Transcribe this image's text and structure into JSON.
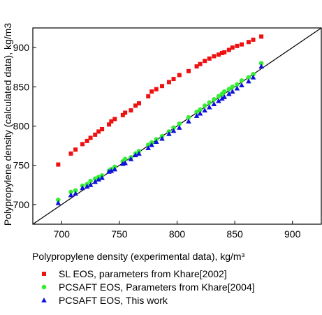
{
  "chart_data": {
    "type": "scatter",
    "xlabel": "Polypropylene density (experimental data), kg/m³",
    "ylabel": "Polypropylene density (calculated data), kg/m3",
    "xlim": [
      675,
      925
    ],
    "ylim": [
      675,
      925
    ],
    "xticks": [
      700,
      750,
      800,
      850,
      900
    ],
    "yticks": [
      700,
      750,
      800,
      850,
      900
    ],
    "grid": false,
    "legend_position": "below",
    "reference_line": {
      "from": [
        675,
        675
      ],
      "to": [
        925,
        925
      ],
      "color": "#000000"
    },
    "series": [
      {
        "name": "SL EOS, parameters from Khare[2002]",
        "marker": "square",
        "color": "#ee1111",
        "points": [
          [
            697,
            751
          ],
          [
            708,
            765
          ],
          [
            712,
            770
          ],
          [
            718,
            777
          ],
          [
            722,
            781
          ],
          [
            725,
            785
          ],
          [
            729,
            789
          ],
          [
            732,
            793
          ],
          [
            735,
            796
          ],
          [
            741,
            802
          ],
          [
            743,
            806
          ],
          [
            746,
            809
          ],
          [
            753,
            814
          ],
          [
            755,
            817
          ],
          [
            760,
            820
          ],
          [
            764,
            826
          ],
          [
            767,
            829
          ],
          [
            775,
            838
          ],
          [
            778,
            844
          ],
          [
            782,
            847
          ],
          [
            787,
            851
          ],
          [
            793,
            856
          ],
          [
            797,
            860
          ],
          [
            802,
            865
          ],
          [
            810,
            870
          ],
          [
            817,
            876
          ],
          [
            820,
            879
          ],
          [
            824,
            883
          ],
          [
            828,
            886
          ],
          [
            832,
            889
          ],
          [
            836,
            891
          ],
          [
            839,
            893
          ],
          [
            841,
            894
          ],
          [
            845,
            897
          ],
          [
            848,
            900
          ],
          [
            852,
            902
          ],
          [
            856,
            904
          ],
          [
            862,
            907
          ],
          [
            866,
            910
          ],
          [
            873,
            914
          ]
        ]
      },
      {
        "name": "PCSAFT EOS, Parameters from Khare[2004]",
        "marker": "circle",
        "color": "#33ee33",
        "points": [
          [
            697,
            706
          ],
          [
            708,
            716
          ],
          [
            712,
            718
          ],
          [
            718,
            724
          ],
          [
            722,
            726
          ],
          [
            725,
            730
          ],
          [
            729,
            733
          ],
          [
            732,
            735
          ],
          [
            735,
            737
          ],
          [
            741,
            743
          ],
          [
            743,
            745
          ],
          [
            746,
            748
          ],
          [
            753,
            755
          ],
          [
            755,
            758
          ],
          [
            760,
            760
          ],
          [
            764,
            765
          ],
          [
            767,
            768
          ],
          [
            775,
            776
          ],
          [
            778,
            779
          ],
          [
            782,
            783
          ],
          [
            787,
            787
          ],
          [
            793,
            793
          ],
          [
            797,
            798
          ],
          [
            802,
            803
          ],
          [
            810,
            811
          ],
          [
            817,
            818
          ],
          [
            820,
            821
          ],
          [
            824,
            826
          ],
          [
            828,
            830
          ],
          [
            832,
            834
          ],
          [
            836,
            838
          ],
          [
            839,
            841
          ],
          [
            841,
            844
          ],
          [
            845,
            847
          ],
          [
            848,
            850
          ],
          [
            852,
            853
          ],
          [
            856,
            858
          ],
          [
            862,
            862
          ],
          [
            866,
            866
          ],
          [
            873,
            880
          ]
        ]
      },
      {
        "name": "PCSAFT EOS, This work",
        "marker": "triangle",
        "color": "#1111dd",
        "points": [
          [
            697,
            702
          ],
          [
            708,
            712
          ],
          [
            712,
            714
          ],
          [
            718,
            721
          ],
          [
            722,
            723
          ],
          [
            725,
            725
          ],
          [
            729,
            729
          ],
          [
            732,
            732
          ],
          [
            735,
            734
          ],
          [
            741,
            742
          ],
          [
            743,
            743
          ],
          [
            746,
            745
          ],
          [
            753,
            752
          ],
          [
            755,
            753
          ],
          [
            760,
            758
          ],
          [
            764,
            763
          ],
          [
            767,
            765
          ],
          [
            775,
            772
          ],
          [
            778,
            776
          ],
          [
            782,
            780
          ],
          [
            787,
            784
          ],
          [
            793,
            790
          ],
          [
            797,
            794
          ],
          [
            802,
            798
          ],
          [
            810,
            806
          ],
          [
            817,
            813
          ],
          [
            820,
            816
          ],
          [
            824,
            820
          ],
          [
            828,
            824
          ],
          [
            832,
            828
          ],
          [
            836,
            832
          ],
          [
            839,
            835
          ],
          [
            841,
            837
          ],
          [
            845,
            841
          ],
          [
            848,
            844
          ],
          [
            852,
            848
          ],
          [
            856,
            852
          ],
          [
            862,
            857
          ],
          [
            866,
            862
          ],
          [
            873,
            876
          ]
        ]
      }
    ]
  }
}
